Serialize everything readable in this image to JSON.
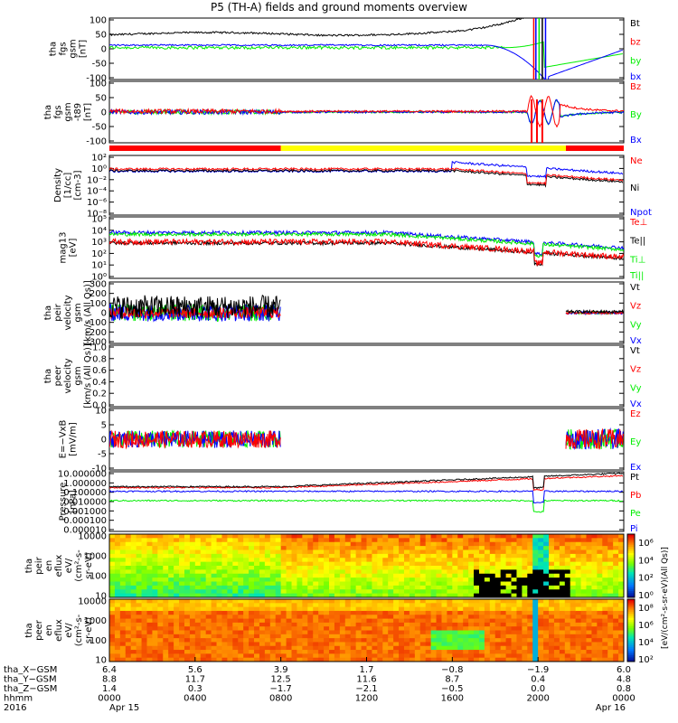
{
  "page": {
    "title": "P5 (TH-A) fields and ground moments overview"
  },
  "colors": {
    "black": "#000000",
    "red": "#ff0000",
    "green": "#00ee00",
    "blue": "#0000ff",
    "yellow": "#ffff00"
  },
  "chart_data": [
    {
      "type": "line",
      "ylabel": [
        "tha",
        "fgs",
        "gsm",
        "[nT]"
      ],
      "yticks": [
        "100",
        "50",
        "0",
        "-50",
        "-100"
      ],
      "ylim": [
        -100,
        100
      ],
      "series": [
        {
          "name": "Bt",
          "color": "#000000"
        },
        {
          "name": "bz",
          "color": "#ff0000"
        },
        {
          "name": "by",
          "color": "#00ee00"
        },
        {
          "name": "bx",
          "color": "#0000ff"
        }
      ]
    },
    {
      "type": "line",
      "ylabel": [
        "tha",
        "fgs",
        "gsm",
        "-t89",
        "[nT]"
      ],
      "yticks": [
        "100",
        "50",
        "0",
        "-50",
        "-100"
      ],
      "ylim": [
        -125,
        125
      ],
      "series": [
        {
          "name": "Bz",
          "color": "#ff0000"
        },
        {
          "name": "By",
          "color": "#00ee00"
        },
        {
          "name": "Bx",
          "color": "#0000ff"
        }
      ]
    },
    {
      "type": "line",
      "ylabel": [
        "Density",
        "[1/cc]",
        "[cm-3]"
      ],
      "yticks": [
        "10²",
        "10⁰",
        "10⁻²",
        "10⁻⁴",
        "10⁻⁶",
        "10⁻⁸"
      ],
      "scale": "log",
      "series": [
        {
          "name": "Ne",
          "color": "#ff0000"
        },
        {
          "name": "Ni",
          "color": "#000000"
        },
        {
          "name": "Npot",
          "color": "#0000ff"
        }
      ]
    },
    {
      "type": "line",
      "ylabel": [
        "mag13",
        "[eV]"
      ],
      "yticks": [
        "10⁵",
        "10⁴",
        "10³",
        "10²",
        "10¹",
        "10⁰"
      ],
      "scale": "log",
      "series": [
        {
          "name": "Te⊥",
          "color": "#ff0000"
        },
        {
          "name": "Te||",
          "color": "#000000"
        },
        {
          "name": "Ti⊥",
          "color": "#00ee00"
        },
        {
          "name": "Ti||",
          "color": "#00ee00"
        }
      ]
    },
    {
      "type": "line",
      "ylabel": [
        "tha",
        "peir",
        "velocity",
        "gsm",
        "[km/s (All Qs)]"
      ],
      "yticks": [
        "300",
        "200",
        "100",
        "0",
        "-100",
        "-200",
        "-300"
      ],
      "ylim": [
        -300,
        300
      ],
      "series": [
        {
          "name": "Vt",
          "color": "#000000"
        },
        {
          "name": "Vz",
          "color": "#ff0000"
        },
        {
          "name": "Vy",
          "color": "#00ee00"
        },
        {
          "name": "Vx",
          "color": "#0000ff"
        }
      ]
    },
    {
      "type": "line",
      "ylabel": [
        "tha",
        "peer",
        "velocity",
        "gsm",
        "[km/s (All Qs)]"
      ],
      "yticks": [
        "1.0",
        "0.8",
        "0.6",
        "0.4",
        "0.2",
        "0.0"
      ],
      "ylim": [
        0,
        1
      ],
      "series": [
        {
          "name": "Vt",
          "color": "#000000"
        },
        {
          "name": "Vz",
          "color": "#ff0000"
        },
        {
          "name": "Vy",
          "color": "#00ee00"
        },
        {
          "name": "Vx",
          "color": "#0000ff"
        }
      ]
    },
    {
      "type": "line",
      "ylabel": [
        "E=−VxB",
        "[mV/m]"
      ],
      "yticks": [
        "10",
        "5",
        "0",
        "-5",
        "-10"
      ],
      "ylim": [
        -10,
        10
      ],
      "series": [
        {
          "name": "Ez",
          "color": "#ff0000"
        },
        {
          "name": "Ey",
          "color": "#00ee00"
        },
        {
          "name": "Ex",
          "color": "#0000ff"
        }
      ]
    },
    {
      "type": "line",
      "ylabel": [
        "Pressure",
        "[nPa]"
      ],
      "yticks": [
        "10.000000",
        "1.000000",
        "0.100000",
        "0.010000",
        "0.001000",
        "0.000100",
        "0.000010"
      ],
      "scale": "log",
      "series": [
        {
          "name": "Pt",
          "color": "#000000"
        },
        {
          "name": "Pb",
          "color": "#ff0000"
        },
        {
          "name": "Pe",
          "color": "#00ee00"
        },
        {
          "name": "Pi",
          "color": "#0000ff"
        }
      ]
    },
    {
      "type": "heatmap",
      "ylabel": [
        "tha",
        "peir",
        "en",
        "eflux",
        "eV/",
        "(cm²-s-",
        "sr-eV)"
      ],
      "yticks": [
        "10000",
        "1000",
        "100",
        "10"
      ],
      "colorbar_ticks": [
        "10⁶",
        "10⁴",
        "10²",
        "10⁰"
      ],
      "colorbar_label": "[eV/(cm²-s-sr-eV)(All Qs)]"
    },
    {
      "type": "heatmap",
      "ylabel": [
        "tha",
        "peer",
        "en",
        "eflux",
        "eV/",
        "(cm²-s-",
        "sr-eV)"
      ],
      "yticks": [
        "10000",
        "1000",
        "100",
        "10"
      ],
      "colorbar_ticks": [
        "10⁸",
        "10⁶",
        "10⁴",
        "10²"
      ],
      "colorbar_label": "[eV/(cm²-s-sr-eV)]"
    }
  ],
  "xaxis": {
    "rows": [
      {
        "label": "tha_X−GSM",
        "values": [
          "6.4",
          "5.6",
          "3.9",
          "1.7",
          "−0.8",
          "−1.9",
          "6.0"
        ]
      },
      {
        "label": "tha_Y−GSM",
        "values": [
          "8.8",
          "11.7",
          "12.5",
          "11.6",
          "8.7",
          "0.4",
          "4.8"
        ]
      },
      {
        "label": "tha_Z−GSM",
        "values": [
          "1.4",
          "0.3",
          "−1.7",
          "−2.1",
          "−0.5",
          "0.0",
          "0.8"
        ]
      },
      {
        "label": "hhmm",
        "values": [
          "0000",
          "0400",
          "0800",
          "1200",
          "1600",
          "2000",
          "0000"
        ]
      },
      {
        "label": "2016",
        "values": [
          "Apr 15",
          "",
          "",
          "",
          "",
          "",
          "Apr 16"
        ]
      }
    ]
  },
  "mode_bar": {
    "segments": [
      {
        "color": "red",
        "start_hour": 0,
        "end_hour": 8.0
      },
      {
        "color": "yellow",
        "start_hour": 8.0,
        "end_hour": 21.3
      },
      {
        "color": "red",
        "start_hour": 21.3,
        "end_hour": 24
      }
    ]
  }
}
